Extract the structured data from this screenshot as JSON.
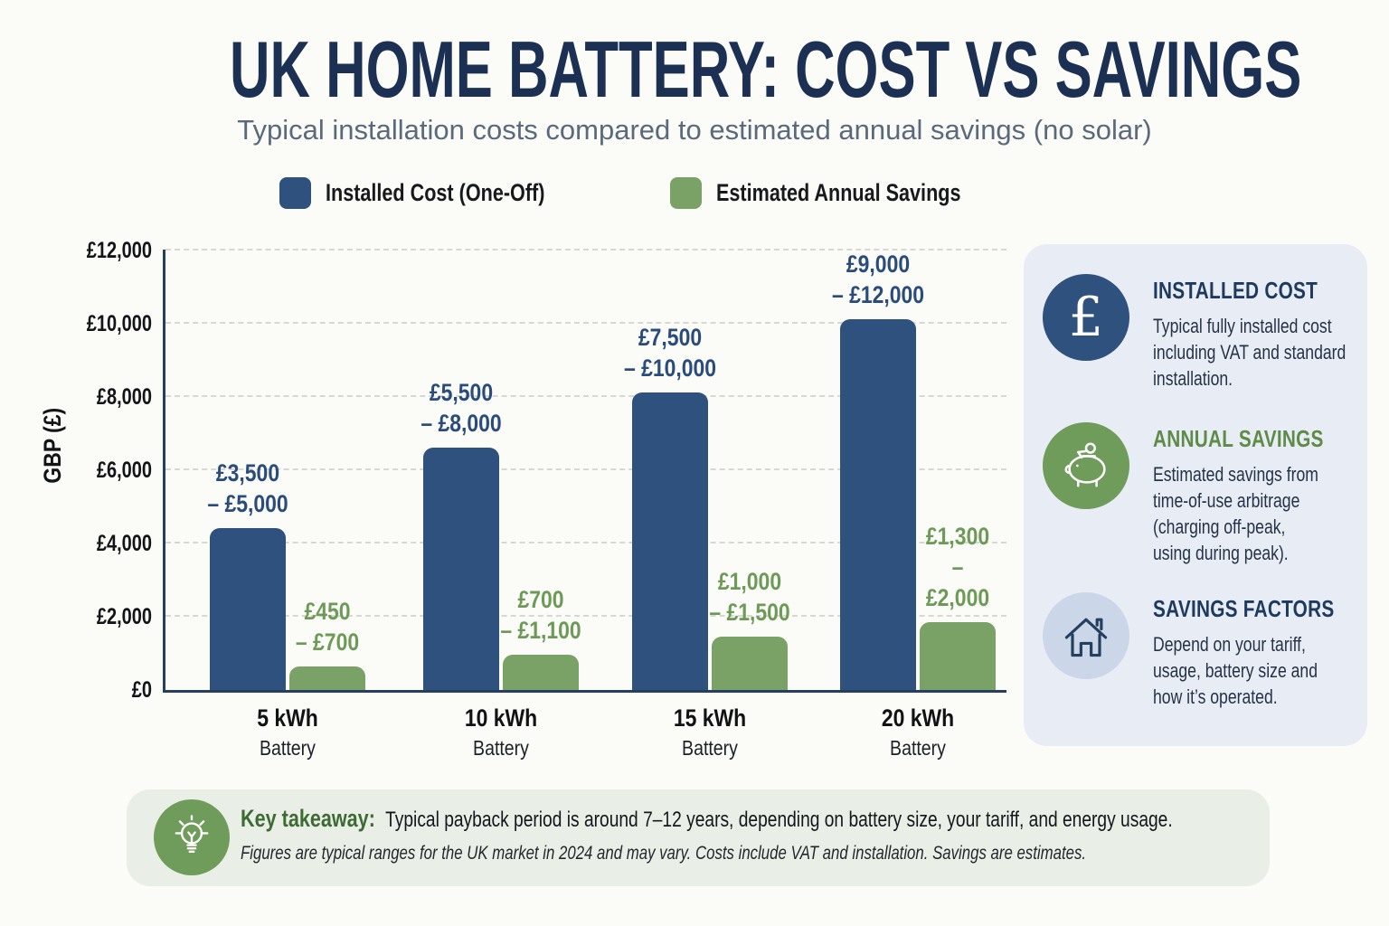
{
  "chart_data": {
    "type": "bar",
    "title": "UK HOME BATTERY: COST VS SAVINGS",
    "subtitle": "Typical installation costs compared to estimated annual savings (no solar)",
    "ylabel": "GBP (£)",
    "ylim": [
      0,
      12000
    ],
    "ytick_step": 2000,
    "yticks": [
      "£0",
      "£2,000",
      "£4,000",
      "£6,000",
      "£8,000",
      "£10,000",
      "£12,000"
    ],
    "grid": "horizontal-dashed",
    "legend_position": "top",
    "categories": [
      "5 kWh",
      "10 kWh",
      "15 kWh",
      "20 kWh"
    ],
    "category_subline": "Battery",
    "series": [
      {
        "name": "Installed Cost (One-Off)",
        "color": "#2E517E",
        "label_color": "#2A4C7C",
        "values": [
          4400,
          6600,
          8100,
          10100
        ],
        "range_labels": [
          "£3,500\n– £5,000",
          "£5,500\n– £8,000",
          "£7,500\n– £10,000",
          "£9,000\n– £12,000"
        ]
      },
      {
        "name": "Estimated Annual Savings",
        "color": "#7BA266",
        "label_color": "#6E9A58",
        "values": [
          650,
          950,
          1450,
          1850
        ],
        "range_labels": [
          "£450\n– £700",
          "£700\n– £1,100",
          "£1,000\n– £1,500",
          "£1,300\n– £2,000"
        ]
      }
    ]
  },
  "sidebar": {
    "items": [
      {
        "icon": "pound-sign-icon",
        "icon_bg": "#2E517E",
        "title": "INSTALLED COST",
        "title_color": "#1E3A5F",
        "body": "Typical fully installed cost\nincluding VAT and standard\ninstallation."
      },
      {
        "icon": "piggy-bank-icon",
        "icon_bg": "#6F9C5B",
        "title": "ANNUAL SAVINGS",
        "title_color": "#5E8B48",
        "body": "Estimated savings from\ntime-of-use arbitrage\n(charging off-peak,\nusing during peak)."
      },
      {
        "icon": "house-icon",
        "icon_bg": "#CBD7E8",
        "title": "SAVINGS FACTORS",
        "title_color": "#1E3A5F",
        "body": "Depend on your tariff,\nusage, battery size and\nhow it’s operated."
      }
    ]
  },
  "banner": {
    "icon": "lightbulb-icon",
    "icon_bg": "#6F9C5B",
    "lead": "Key takeaway:",
    "lead_color": "#3E6B33",
    "text": "Typical payback period is around 7–12 years, depending on battery size, your tariff, and energy usage.",
    "footnote": "Figures are typical ranges for the UK market in 2024 and may vary. Costs include VAT and installation. Savings are estimates."
  },
  "palette": {
    "background": "#FBFBF8",
    "title_navy": "#1C3054",
    "subtitle_gray": "#5A6A7C",
    "bar_navy": "#2E517E",
    "bar_green": "#7BA266",
    "axis_navy": "#24405E",
    "gridline_gray": "#D8D8D2",
    "sidebar_bg": "#E8EDF5",
    "sidebar_circle_light": "#CBD7E8",
    "banner_bg": "#E9EFE6"
  }
}
